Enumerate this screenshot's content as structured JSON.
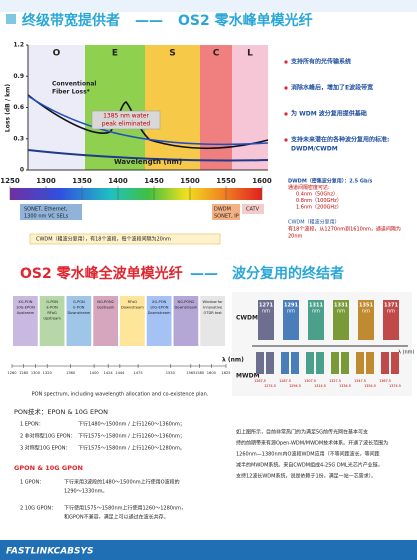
{
  "header": {
    "title_left": "终级带宽提供者",
    "title_dash": "——",
    "title_right": "OS2 零水峰单模光纤"
  },
  "loss_chart": {
    "type": "line",
    "y_label": "Loss (dB / km)",
    "x_label": "Wavelength (nm)",
    "bands": [
      "O",
      "E",
      "S",
      "C",
      "L"
    ],
    "ylim": [
      0,
      1.2
    ],
    "yticks": [
      0,
      0.3,
      0.6,
      0.9,
      1.2
    ],
    "annotation_conventional": [
      "Conventional",
      "Fiber Loss*"
    ],
    "annotation_peak": [
      "1385 nm water",
      "peak eliminated"
    ]
  },
  "wavelength_axis": {
    "xlim": [
      1250,
      1600
    ],
    "xticks": [
      1250,
      1300,
      1350,
      1400,
      1450,
      1500,
      1550,
      1600
    ]
  },
  "features": [
    [
      "支持所有的光传输系统"
    ],
    [
      "消除水峰后，增加了E波段带宽"
    ],
    [
      "为 WDM 波分复用提供基础"
    ],
    [
      "支持未来潜在的各种波分复用的标准:",
      "DWDM/CWDM"
    ]
  ],
  "spectrum_labels": {
    "sonet": [
      "SONET, Ethernet,",
      "1300 nm VC SELs"
    ],
    "dwdm": [
      "DWDM",
      "SONET, IP"
    ],
    "catv": "CATV",
    "cwdm": "CWDM（粗波分复用），有18个波段，每个波段间隔为20nm"
  },
  "dwdm_note": [
    "DWDM（密集波分复用）：2.5 Gb/s",
    "通道间隔密度可达:",
    "0.4nm（50Ghz）",
    "0.8nm（100GHz）",
    "1.6nm（200GHz）"
  ],
  "cwdm_note": [
    "CWDM（粗波分复用）",
    "有18个波段，从1270nm到1610nm，通道间隔为",
    "20nm"
  ],
  "section2": {
    "title_left": "OS2 零水峰全波单模光纤",
    "title_dash": "——",
    "title_right": "波分复用的终结者"
  },
  "pon_figure": {
    "columns": [
      [
        "XG-PON",
        "10G-EPON",
        "Upstream"
      ],
      [
        "G-PON",
        "E-PON",
        "RFoG",
        "Upstream"
      ],
      [
        "G-PON",
        "E-PON",
        "Downstream"
      ],
      [
        "NG-PON2",
        "Upstream"
      ],
      [
        "RFoG",
        "Downstream"
      ],
      [
        "XG-PON",
        "10G-EPON",
        "Downstream"
      ],
      [
        "NG-PON2",
        "Downstream"
      ],
      [
        "Window for",
        "Innovative",
        "OTDR test"
      ]
    ],
    "xlim": [
      1260,
      1625
    ],
    "xticks": [
      1260,
      1280,
      1300,
      1320,
      1360,
      1400,
      1424,
      1444,
      1475,
      1530,
      1565,
      1580,
      1600,
      1625
    ],
    "x_label": "λ (nm)",
    "caption": "PON spectrum, including wavelength allocation and co-existence plan."
  },
  "wdm_figure": {
    "cwdm_label": "CWDM",
    "mwdm_label": "MWDM",
    "lambda_label": "λ (nm)",
    "cwdm_channels": [
      "1271",
      "1291",
      "1311",
      "1331",
      "1351",
      "1371"
    ],
    "channel_unit": "nm",
    "mwdm_channels": [
      "1267.5",
      "1274.5",
      "1287.5",
      "1294.5",
      "1307.5",
      "1314.5",
      "1327.5",
      "1334.5",
      "1347.5",
      "1354.5",
      "1367.5",
      "1374.5"
    ]
  },
  "pon_text": {
    "epon_title": "PON技术：EPON & 10G EPON",
    "epon_items": [
      [
        "1  EPON：",
        "下行1480～1500nm / 上行1260～1360nm；"
      ],
      [
        "2  非对称型10G EPON：",
        "下行1575～1580nm / 上行1260～1360nm；"
      ],
      [
        "3  对称型10G EPON：",
        "下行1575～1580nm / 上行1260～1280nm。"
      ]
    ],
    "gpon_title": "GPON & 10G GPON",
    "gpon_items": [
      [
        "1  GPON：",
        "下行采用3波段的1480～1500nm上行使用O波段的",
        "1290～1330nm。"
      ],
      [
        "2  10G GPON：",
        "下行使用1575～1580nm上行使用1260～1280nm，",
        "和GPON不兼容，满足上可以通过在波长共存。"
      ]
    ]
  },
  "paragraph": [
    "如上图所示，目前非常热门的为满足5G前传光网在基本可支",
    "持的前期带来有源Open-WDM/MWDM技术体系。开通了波长范围为",
    "1260nm—1380nm内O波段WDM应用（不等间距波长，等间距",
    "减半的MWDM系统。来自CWDM组成4-25G DML光芯片产业链，",
    "支持12波长WDM系统，说是依赖于1份，满足一站一芯需求）。"
  ],
  "footer": "FASTLINKCABSYS"
}
